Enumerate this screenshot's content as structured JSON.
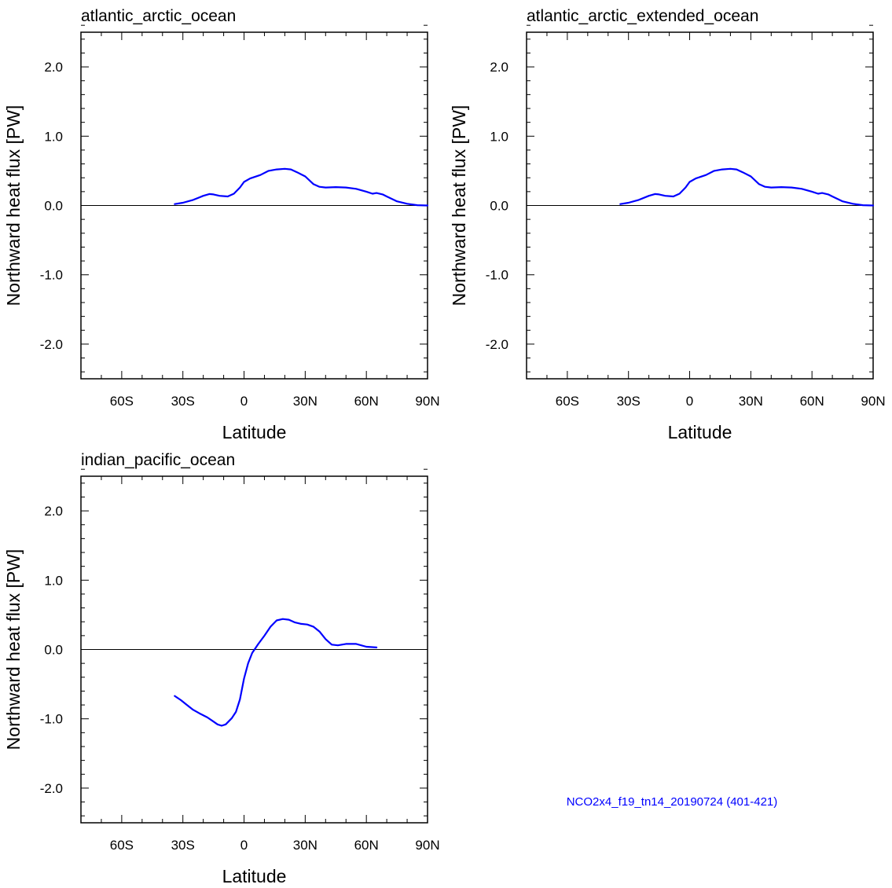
{
  "chart_data": [
    {
      "type": "line",
      "title": "atlantic_arctic_ocean",
      "xlabel": "Latitude",
      "ylabel": "Northward heat flux [PW]",
      "xlim": [
        -80,
        90
      ],
      "ylim": [
        -2.5,
        2.5
      ],
      "xticks": [
        -60,
        -30,
        0,
        30,
        60,
        90
      ],
      "xtick_labels": [
        "60S",
        "30S",
        "0",
        "30N",
        "60N",
        "90N"
      ],
      "yticks": [
        2.0,
        1.0,
        0.0,
        -1.0,
        -2.0
      ],
      "ytick_labels": [
        "2.0",
        "1.0",
        "0.0",
        "-1.0",
        "-2.0"
      ],
      "reference_line": 0,
      "series": [
        {
          "name": "NCO2x4_f19_tn14_20190724 (401-421)",
          "color": "#0000ff",
          "x": [
            -34,
            -30,
            -25,
            -20,
            -17,
            -15,
            -12,
            -8,
            -5,
            -2,
            0,
            3,
            8,
            12,
            16,
            20,
            23,
            26,
            30,
            34,
            37,
            40,
            45,
            50,
            55,
            60,
            63,
            65,
            68,
            70,
            75,
            80,
            85,
            90
          ],
          "y": [
            0.02,
            0.04,
            0.08,
            0.14,
            0.165,
            0.16,
            0.14,
            0.13,
            0.17,
            0.26,
            0.34,
            0.39,
            0.44,
            0.5,
            0.52,
            0.53,
            0.52,
            0.48,
            0.42,
            0.31,
            0.27,
            0.26,
            0.265,
            0.26,
            0.24,
            0.2,
            0.17,
            0.18,
            0.16,
            0.13,
            0.06,
            0.025,
            0.005,
            0.0
          ]
        }
      ]
    },
    {
      "type": "line",
      "title": "atlantic_arctic_extended_ocean",
      "xlabel": "Latitude",
      "ylabel": "Northward heat flux [PW]",
      "xlim": [
        -80,
        90
      ],
      "ylim": [
        -2.5,
        2.5
      ],
      "xticks": [
        -60,
        -30,
        0,
        30,
        60,
        90
      ],
      "xtick_labels": [
        "60S",
        "30S",
        "0",
        "30N",
        "60N",
        "90N"
      ],
      "yticks": [
        2.0,
        1.0,
        0.0,
        -1.0,
        -2.0
      ],
      "ytick_labels": [
        "2.0",
        "1.0",
        "0.0",
        "-1.0",
        "-2.0"
      ],
      "reference_line": 0,
      "series": [
        {
          "name": "NCO2x4_f19_tn14_20190724 (401-421)",
          "color": "#0000ff",
          "x": [
            -34,
            -30,
            -25,
            -20,
            -17,
            -15,
            -12,
            -8,
            -5,
            -2,
            0,
            3,
            8,
            12,
            16,
            20,
            23,
            26,
            30,
            34,
            37,
            40,
            45,
            50,
            55,
            60,
            63,
            65,
            68,
            70,
            75,
            80,
            85,
            90
          ],
          "y": [
            0.02,
            0.04,
            0.08,
            0.14,
            0.165,
            0.16,
            0.14,
            0.13,
            0.17,
            0.26,
            0.34,
            0.39,
            0.44,
            0.5,
            0.52,
            0.53,
            0.52,
            0.48,
            0.42,
            0.31,
            0.27,
            0.26,
            0.265,
            0.26,
            0.24,
            0.2,
            0.17,
            0.18,
            0.16,
            0.13,
            0.06,
            0.025,
            0.005,
            0.0
          ]
        }
      ]
    },
    {
      "type": "line",
      "title": "indian_pacific_ocean",
      "xlabel": "Latitude",
      "ylabel": "Northward heat flux [PW]",
      "xlim": [
        -80,
        90
      ],
      "ylim": [
        -2.5,
        2.5
      ],
      "xticks": [
        -60,
        -30,
        0,
        30,
        60,
        90
      ],
      "xtick_labels": [
        "60S",
        "30S",
        "0",
        "30N",
        "60N",
        "90N"
      ],
      "yticks": [
        2.0,
        1.0,
        0.0,
        -1.0,
        -2.0
      ],
      "ytick_labels": [
        "2.0",
        "1.0",
        "0.0",
        "-1.0",
        "-2.0"
      ],
      "reference_line": 0,
      "series": [
        {
          "name": "NCO2x4_f19_tn14_20190724 (401-421)",
          "color": "#0000ff",
          "x": [
            -34,
            -31,
            -28,
            -25,
            -22,
            -18,
            -15,
            -13,
            -11,
            -9,
            -6,
            -4,
            -2,
            0,
            2,
            4,
            7,
            10,
            13,
            16,
            19,
            22,
            25,
            28,
            31,
            34,
            37,
            40,
            43,
            46,
            50,
            55,
            60,
            65
          ],
          "y": [
            -0.67,
            -0.73,
            -0.8,
            -0.87,
            -0.92,
            -0.98,
            -1.04,
            -1.08,
            -1.1,
            -1.08,
            -0.99,
            -0.9,
            -0.72,
            -0.42,
            -0.2,
            -0.05,
            0.08,
            0.2,
            0.33,
            0.42,
            0.44,
            0.43,
            0.39,
            0.37,
            0.36,
            0.33,
            0.26,
            0.15,
            0.07,
            0.06,
            0.08,
            0.08,
            0.04,
            0.03
          ]
        }
      ]
    }
  ],
  "legend_text": "NCO2x4_f19_tn14_20190724 (401-421)"
}
